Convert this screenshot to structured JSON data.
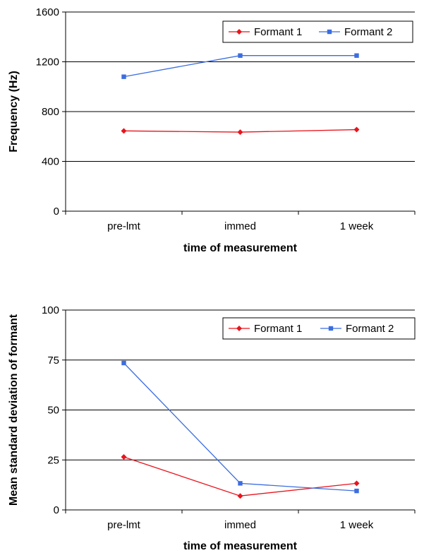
{
  "chart_data": [
    {
      "type": "line",
      "title": "",
      "xlabel": "time of measurement",
      "ylabel": "Frequency (Hz)",
      "categories": [
        "pre-lmt",
        "immed",
        "1 week"
      ],
      "ylim": [
        0,
        1600
      ],
      "yticks": [
        0,
        400,
        800,
        1200,
        1600
      ],
      "grid": true,
      "legend": "top-right",
      "series": [
        {
          "name": "Formant 1",
          "values": [
            645,
            635,
            655
          ],
          "color": "#e8141c",
          "marker": "diamond"
        },
        {
          "name": "Formant 2",
          "values": [
            1080,
            1250,
            1250
          ],
          "color": "#3b6de0",
          "marker": "square"
        }
      ]
    },
    {
      "type": "line",
      "title": "",
      "xlabel": "time of measurement",
      "ylabel": "Mean standard deviation of formant",
      "categories": [
        "pre-lmt",
        "immed",
        "1 week"
      ],
      "ylim": [
        0,
        100
      ],
      "yticks": [
        0,
        25,
        50,
        75,
        100
      ],
      "grid": true,
      "legend": "top-right",
      "series": [
        {
          "name": "Formant 1",
          "values": [
            26.5,
            7,
            13.3
          ],
          "color": "#e8141c",
          "marker": "diamond"
        },
        {
          "name": "Formant 2",
          "values": [
            73.5,
            13.3,
            9.5
          ],
          "color": "#3b6de0",
          "marker": "square"
        }
      ]
    }
  ]
}
